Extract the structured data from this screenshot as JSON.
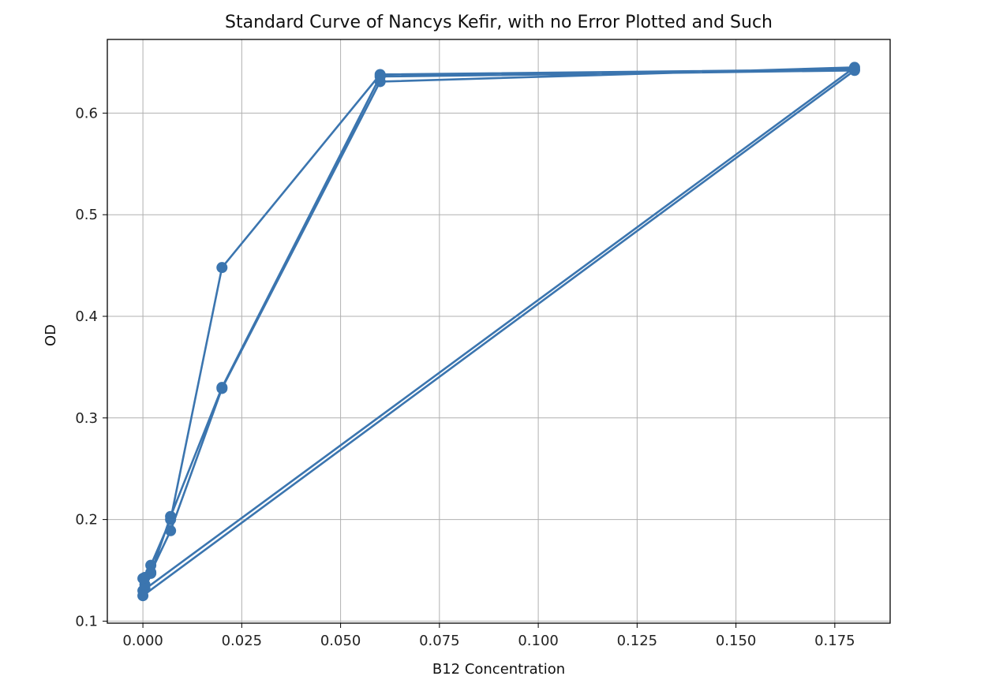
{
  "chart_data": {
    "type": "line",
    "title": "Standard Curve of Nancys Kefir, with no Error Plotted and Such",
    "xlabel": "B12 Concentration",
    "ylabel": "OD",
    "xlim": [
      -0.009,
      0.189
    ],
    "ylim": [
      0.098,
      0.6725
    ],
    "x_ticks": [
      0.0,
      0.025,
      0.05,
      0.075,
      0.1,
      0.125,
      0.15,
      0.175
    ],
    "x_tick_labels": [
      "0.000",
      "0.025",
      "0.050",
      "0.075",
      "0.100",
      "0.125",
      "0.150",
      "0.175"
    ],
    "y_ticks": [
      0.1,
      0.2,
      0.3,
      0.4,
      0.5,
      0.6
    ],
    "y_tick_labels": [
      "0.1",
      "0.2",
      "0.3",
      "0.4",
      "0.5",
      "0.6"
    ],
    "grid": true,
    "legend": "none",
    "line_color": "#3b75af",
    "series": [
      {
        "values": [
          {
            "x": 0.18,
            "y": 0.643
          },
          {
            "x": 0.06,
            "y": 0.638
          },
          {
            "x": 0.02,
            "y": 0.448
          },
          {
            "x": 0.007,
            "y": 0.2
          },
          {
            "x": 0.002,
            "y": 0.155
          },
          {
            "x": 0.0005,
            "y": 0.143
          },
          {
            "x": 0.0,
            "y": 0.13
          },
          {
            "x": 0.18,
            "y": 0.645
          },
          {
            "x": 0.06,
            "y": 0.631
          },
          {
            "x": 0.02,
            "y": 0.329
          },
          {
            "x": 0.007,
            "y": 0.189
          },
          {
            "x": 0.002,
            "y": 0.148
          },
          {
            "x": 0.0005,
            "y": 0.132
          },
          {
            "x": 0.0,
            "y": 0.125
          },
          {
            "x": 0.18,
            "y": 0.642
          },
          {
            "x": 0.06,
            "y": 0.636
          },
          {
            "x": 0.02,
            "y": 0.33
          },
          {
            "x": 0.007,
            "y": 0.203
          },
          {
            "x": 0.002,
            "y": 0.147
          },
          {
            "x": 0.0005,
            "y": 0.136
          },
          {
            "x": 0.0,
            "y": 0.142
          }
        ]
      }
    ]
  }
}
